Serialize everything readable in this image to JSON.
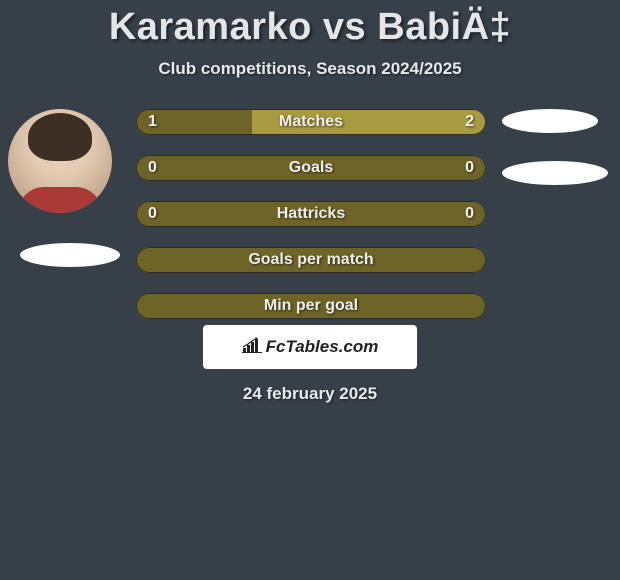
{
  "title": "Karamarko vs BabiÄ‡",
  "subtitle": "Club competitions, Season 2024/2025",
  "date": "24 february 2025",
  "badge_text": "FcTables.com",
  "colors": {
    "background": "#374049",
    "bar_light": "#a89a3f",
    "bar_dark": "#6e6428",
    "text_light": "#e8e8e8",
    "border": "#2c2c24",
    "white": "#ffffff"
  },
  "rows": [
    {
      "label": "Matches",
      "left": "1",
      "right": "2",
      "fill_pct": 33,
      "show_values": true
    },
    {
      "label": "Goals",
      "left": "0",
      "right": "0",
      "fill_pct": 100,
      "show_values": true
    },
    {
      "label": "Hattricks",
      "left": "0",
      "right": "0",
      "fill_pct": 100,
      "show_values": true
    },
    {
      "label": "Goals per match",
      "left": "",
      "right": "",
      "fill_pct": 100,
      "show_values": false
    },
    {
      "label": "Min per goal",
      "left": "",
      "right": "",
      "fill_pct": 100,
      "show_values": false
    }
  ]
}
